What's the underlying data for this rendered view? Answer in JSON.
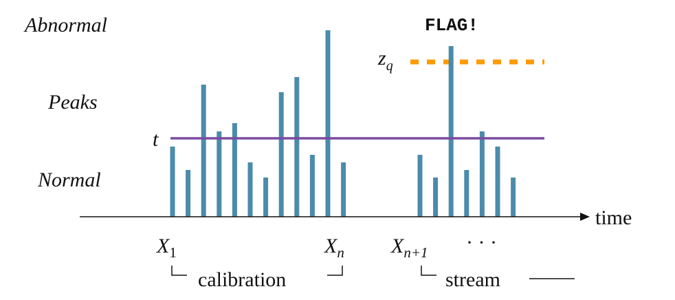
{
  "labels": {
    "abnormal": "Abnormal",
    "peaks": "Peaks",
    "normal": "Normal",
    "threshold": "t",
    "quantile": "z",
    "quantile_sub": "q",
    "flag": "FLAG!",
    "axis": "time",
    "x1": "X",
    "x1_sub": "1",
    "xn": "X",
    "xn_sub": "n",
    "xn1": "X",
    "xn1_sub": "n+1",
    "ellipsis": "· · ·",
    "calibration": "calibration",
    "stream": "stream"
  },
  "colors": {
    "bar": "#4b8bab",
    "threshold": "#7a4c9f",
    "quantile": "#ff9a00",
    "axis": "#111111"
  },
  "calibration_values": [
    102,
    68,
    192,
    124,
    136,
    79,
    57,
    181,
    203,
    90,
    271,
    79
  ],
  "stream_values": [
    90,
    57,
    248,
    68,
    124,
    102,
    57
  ],
  "threshold_t": 114,
  "quantile_zq": 225
}
